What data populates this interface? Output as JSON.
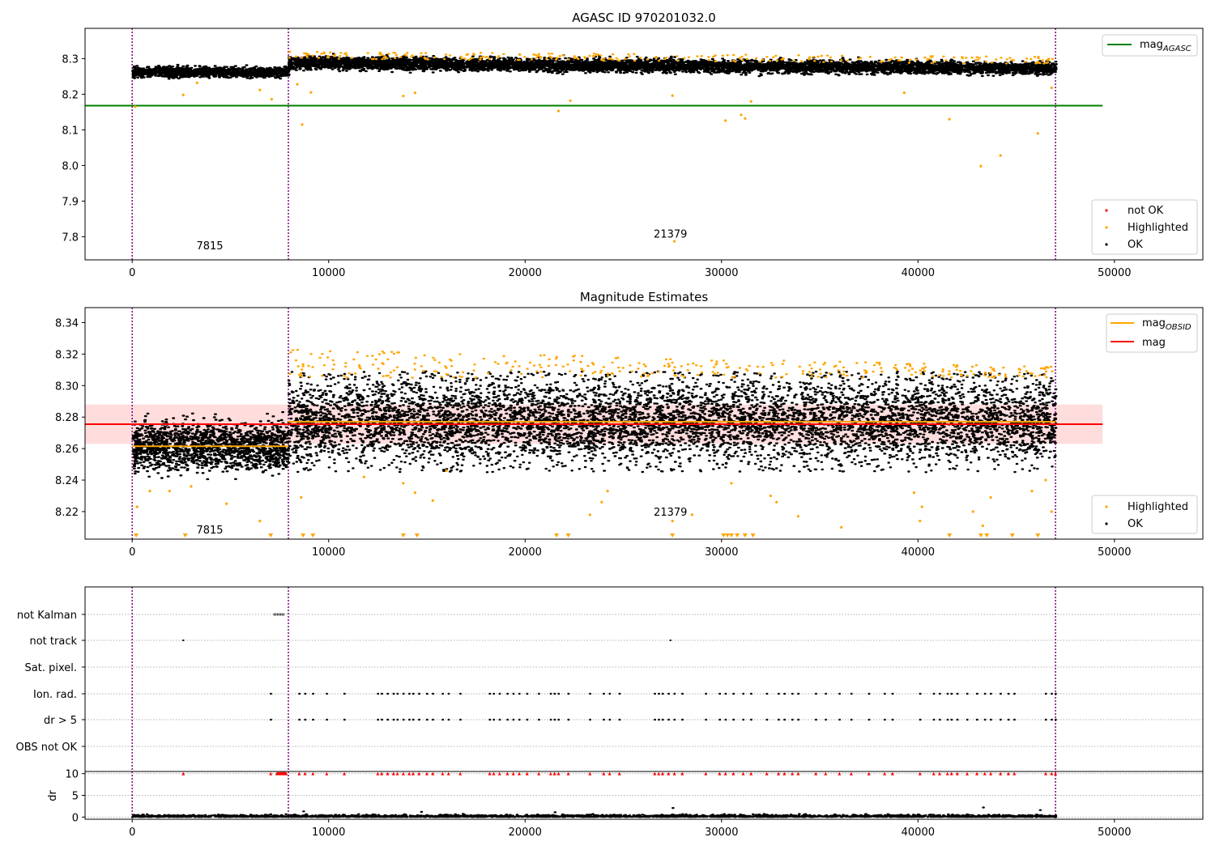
{
  "chart_data": [
    {
      "type": "scatter",
      "title": "AGASC ID 970201032.0",
      "xlim": [
        -2400,
        54500
      ],
      "ylim": [
        7.735,
        8.385
      ],
      "x_ticks": [
        "0",
        "10000",
        "20000",
        "30000",
        "40000",
        "50000"
      ],
      "y_ticks": [
        "7.8",
        "7.9",
        "8.0",
        "8.1",
        "8.2",
        "8.3"
      ],
      "vlines": [
        0,
        7950,
        47000
      ],
      "annotations": [
        {
          "text": "7815",
          "x": 3950,
          "y": 7.765
        },
        {
          "text": "21379",
          "x": 27400,
          "y": 7.797
        }
      ],
      "reference_lines": [
        {
          "name": "mag_AGASC",
          "value": 8.168,
          "color": "#008000",
          "x_end": 49400
        }
      ],
      "segments": [
        {
          "x_start": 0,
          "x_end": 7950,
          "level": 8.262,
          "spread": 0.007
        },
        {
          "x_start": 7950,
          "x_end": 47000,
          "level": 8.288,
          "level_end": 8.272,
          "spread": 0.009
        }
      ],
      "highlighted_sample": [
        {
          "x": 150,
          "y": 8.165
        },
        {
          "x": 2600,
          "y": 8.198
        },
        {
          "x": 3300,
          "y": 8.232
        },
        {
          "x": 6500,
          "y": 8.212
        },
        {
          "x": 7100,
          "y": 8.186
        },
        {
          "x": 8400,
          "y": 8.228
        },
        {
          "x": 8650,
          "y": 8.115
        },
        {
          "x": 9100,
          "y": 8.205
        },
        {
          "x": 13800,
          "y": 8.195
        },
        {
          "x": 14400,
          "y": 8.204
        },
        {
          "x": 21700,
          "y": 8.153
        },
        {
          "x": 22300,
          "y": 8.182
        },
        {
          "x": 27500,
          "y": 8.196
        },
        {
          "x": 27600,
          "y": 7.787
        },
        {
          "x": 30200,
          "y": 8.126
        },
        {
          "x": 31000,
          "y": 8.142
        },
        {
          "x": 31200,
          "y": 8.132
        },
        {
          "x": 31500,
          "y": 8.18
        },
        {
          "x": 39300,
          "y": 8.204
        },
        {
          "x": 41600,
          "y": 8.13
        },
        {
          "x": 43200,
          "y": 7.998
        },
        {
          "x": 44200,
          "y": 8.028
        },
        {
          "x": 46100,
          "y": 8.09
        },
        {
          "x": 46800,
          "y": 8.218
        }
      ],
      "legend": {
        "lines": [
          "mag",
          "AGASC"
        ],
        "markers": [
          "not OK",
          "Highlighted",
          "OK"
        ]
      }
    },
    {
      "type": "scatter",
      "title": "Magnitude Estimates",
      "xlim": [
        -2400,
        54500
      ],
      "ylim": [
        8.2025,
        8.3495
      ],
      "x_ticks": [
        "0",
        "10000",
        "20000",
        "30000",
        "40000",
        "50000"
      ],
      "y_ticks": [
        "8.22",
        "8.24",
        "8.26",
        "8.28",
        "8.30",
        "8.32",
        "8.34"
      ],
      "vlines": [
        0,
        7950,
        47000
      ],
      "annotations": [
        {
          "text": "7815",
          "x": 3950,
          "y": 8.206
        },
        {
          "text": "21379",
          "x": 27400,
          "y": 8.2175
        }
      ],
      "mag": 8.2755,
      "mag_band": [
        8.263,
        8.288
      ],
      "mag_obsid": [
        {
          "x_start": 0,
          "x_end": 7950,
          "value": 8.2615
        },
        {
          "x_start": 7950,
          "x_end": 47000,
          "value": 8.277
        }
      ],
      "highlighted_sample": [
        {
          "x": 250,
          "y": 8.223
        },
        {
          "x": 900,
          "y": 8.233
        },
        {
          "x": 1900,
          "y": 8.233
        },
        {
          "x": 3000,
          "y": 8.236
        },
        {
          "x": 4800,
          "y": 8.225
        },
        {
          "x": 6500,
          "y": 8.214
        },
        {
          "x": 8600,
          "y": 8.229
        },
        {
          "x": 11800,
          "y": 8.242
        },
        {
          "x": 13800,
          "y": 8.238
        },
        {
          "x": 14400,
          "y": 8.232
        },
        {
          "x": 15300,
          "y": 8.227
        },
        {
          "x": 16000,
          "y": 8.246
        },
        {
          "x": 23300,
          "y": 8.218
        },
        {
          "x": 23900,
          "y": 8.226
        },
        {
          "x": 24200,
          "y": 8.233
        },
        {
          "x": 27500,
          "y": 8.214
        },
        {
          "x": 28500,
          "y": 8.218
        },
        {
          "x": 30500,
          "y": 8.238
        },
        {
          "x": 32500,
          "y": 8.23
        },
        {
          "x": 32800,
          "y": 8.226
        },
        {
          "x": 33900,
          "y": 8.217
        },
        {
          "x": 36100,
          "y": 8.21
        },
        {
          "x": 39800,
          "y": 8.232
        },
        {
          "x": 40100,
          "y": 8.214
        },
        {
          "x": 40200,
          "y": 8.223
        },
        {
          "x": 42800,
          "y": 8.22
        },
        {
          "x": 43300,
          "y": 8.211
        },
        {
          "x": 43700,
          "y": 8.229
        },
        {
          "x": 45800,
          "y": 8.233
        },
        {
          "x": 46500,
          "y": 8.24
        },
        {
          "x": 46800,
          "y": 8.22
        }
      ],
      "floor_markers_x": [
        200,
        2700,
        7050,
        8700,
        9200,
        13800,
        14500,
        21600,
        22200,
        27500,
        30100,
        30300,
        30500,
        30800,
        31200,
        31600,
        41600,
        43200,
        43500,
        44800,
        46100
      ],
      "legend": {
        "lines": [
          "mag",
          "OBSID",
          "mag"
        ],
        "markers": [
          "Highlighted",
          "OK"
        ]
      }
    },
    {
      "type": "scatter",
      "title": "",
      "xlim": [
        -2400,
        54500
      ],
      "x_ticks": [
        "0",
        "10000",
        "20000",
        "30000",
        "40000",
        "50000"
      ],
      "vlines": [
        0,
        7950,
        47000
      ],
      "flag_rows": [
        "not Kalman",
        "not track",
        "Sat. pixel.",
        "Ion. rad.",
        "dr > 5",
        "OBS not OK"
      ],
      "not_kalman_range": [
        7200,
        7750
      ],
      "not_track_x": [
        2600,
        27400
      ],
      "ion_rad_x": [
        7050,
        8500,
        8800,
        9200,
        9900,
        10800,
        12500,
        12700,
        13000,
        13300,
        13500,
        13800,
        14100,
        14300,
        14600,
        15000,
        15300,
        15800,
        16100,
        16700,
        18200,
        18400,
        18700,
        19100,
        19400,
        19700,
        20100,
        20700,
        21300,
        21500,
        21700,
        22200,
        23300,
        24000,
        24300,
        24800,
        26600,
        26800,
        27000,
        27300,
        27600,
        28000,
        29200,
        29900,
        30200,
        30600,
        31100,
        31500,
        32300,
        32900,
        33200,
        33600,
        33900,
        34800,
        35300,
        36000,
        36600,
        37500,
        38300,
        38700,
        40100,
        40800,
        41100,
        41500,
        41700,
        42000,
        42500,
        43000,
        43400,
        43700,
        44200,
        44600,
        44900,
        46500,
        46800,
        47000
      ],
      "dr_ylim": [
        -0.5,
        10.5
      ],
      "dr_ticks": [
        "0",
        "5",
        "10"
      ],
      "dr_ylabel": "dr"
    }
  ],
  "colors": {
    "ok": "#000000",
    "highlighted": "#ffa500",
    "not_ok": "#ff0000",
    "agasc_line": "#008000",
    "mag_line": "#ff0000",
    "band": "#ffdddd",
    "vline": "#800080"
  },
  "icons": {
    "legend_marker": "dot",
    "floor_marker": "triangle-down",
    "dr_flag": "triangle-up"
  }
}
